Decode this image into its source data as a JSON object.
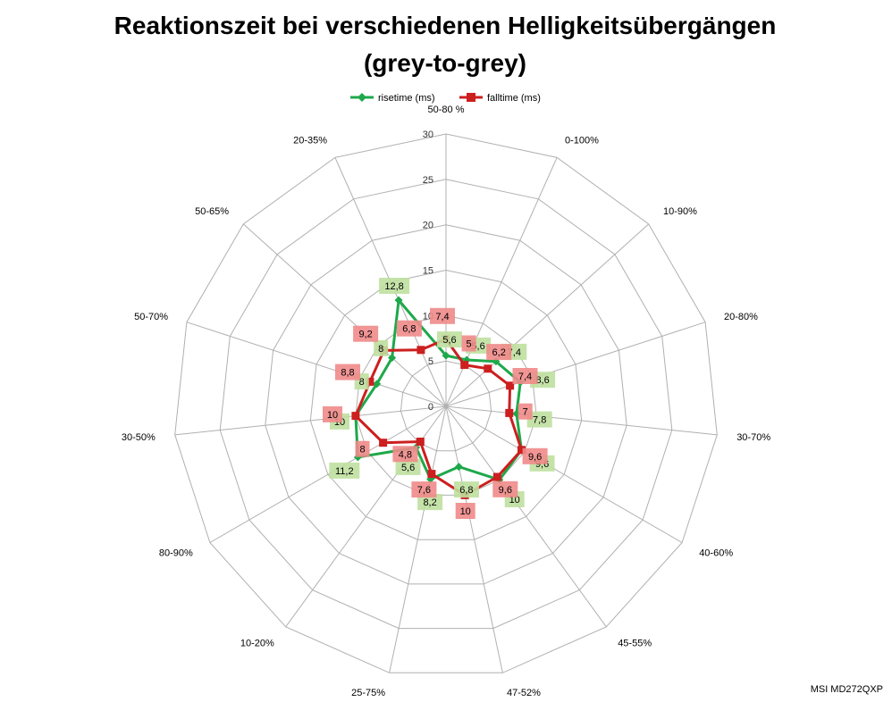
{
  "chart_data": {
    "type": "radar",
    "title_line1": "Reaktionszeit bei verschiedenen Helligkeitsübergängen",
    "title_line2": "(grey-to-grey)",
    "categories": [
      "50-80 %",
      "0-100%",
      "10-90%",
      "20-80%",
      "30-70%",
      "40-60%",
      "45-55%",
      "47-52%",
      "25-75%",
      "10-20%",
      "80-90%",
      "30-50%",
      "50-70%",
      "50-65%",
      "20-35%"
    ],
    "rlim": [
      0,
      30
    ],
    "ticks": [
      "0",
      "5",
      "10",
      "15",
      "20",
      "25",
      "30"
    ],
    "tick_values": [
      0,
      5,
      10,
      15,
      20,
      25,
      30
    ],
    "grid": true,
    "legend_position": "top",
    "series": [
      {
        "name": "risetime (ms)",
        "color": "#1ea84a",
        "label_bg": "#bfe0a0",
        "marker": "diamond",
        "values": [
          5.6,
          5.6,
          7.4,
          8.6,
          7.8,
          9.6,
          10,
          6.8,
          8.2,
          5.6,
          11.2,
          10,
          8,
          8,
          12.8
        ],
        "labels": [
          "5,6",
          "5,6",
          "7,4",
          "8,6",
          "7,8",
          "9,6",
          "10",
          "6,8",
          "8,2",
          "5,6",
          "11,2",
          "10",
          "8",
          "8",
          "12,8"
        ]
      },
      {
        "name": "falltime (ms)",
        "color": "#cc1f1f",
        "label_bg": "#f08a8a",
        "marker": "square",
        "values": [
          7.4,
          5,
          6.2,
          7.4,
          7,
          9.6,
          9.6,
          10,
          7.6,
          4.8,
          8,
          10,
          8.8,
          9.2,
          6.8
        ],
        "labels": [
          "7,4",
          "5",
          "6,2",
          "7,4",
          "7",
          "9,6",
          "9,6",
          "10",
          "7,6",
          "4,8",
          "8",
          "10",
          "8,8",
          "9,2",
          "6,8"
        ]
      }
    ],
    "watermark": "MSI MD272QXP"
  }
}
